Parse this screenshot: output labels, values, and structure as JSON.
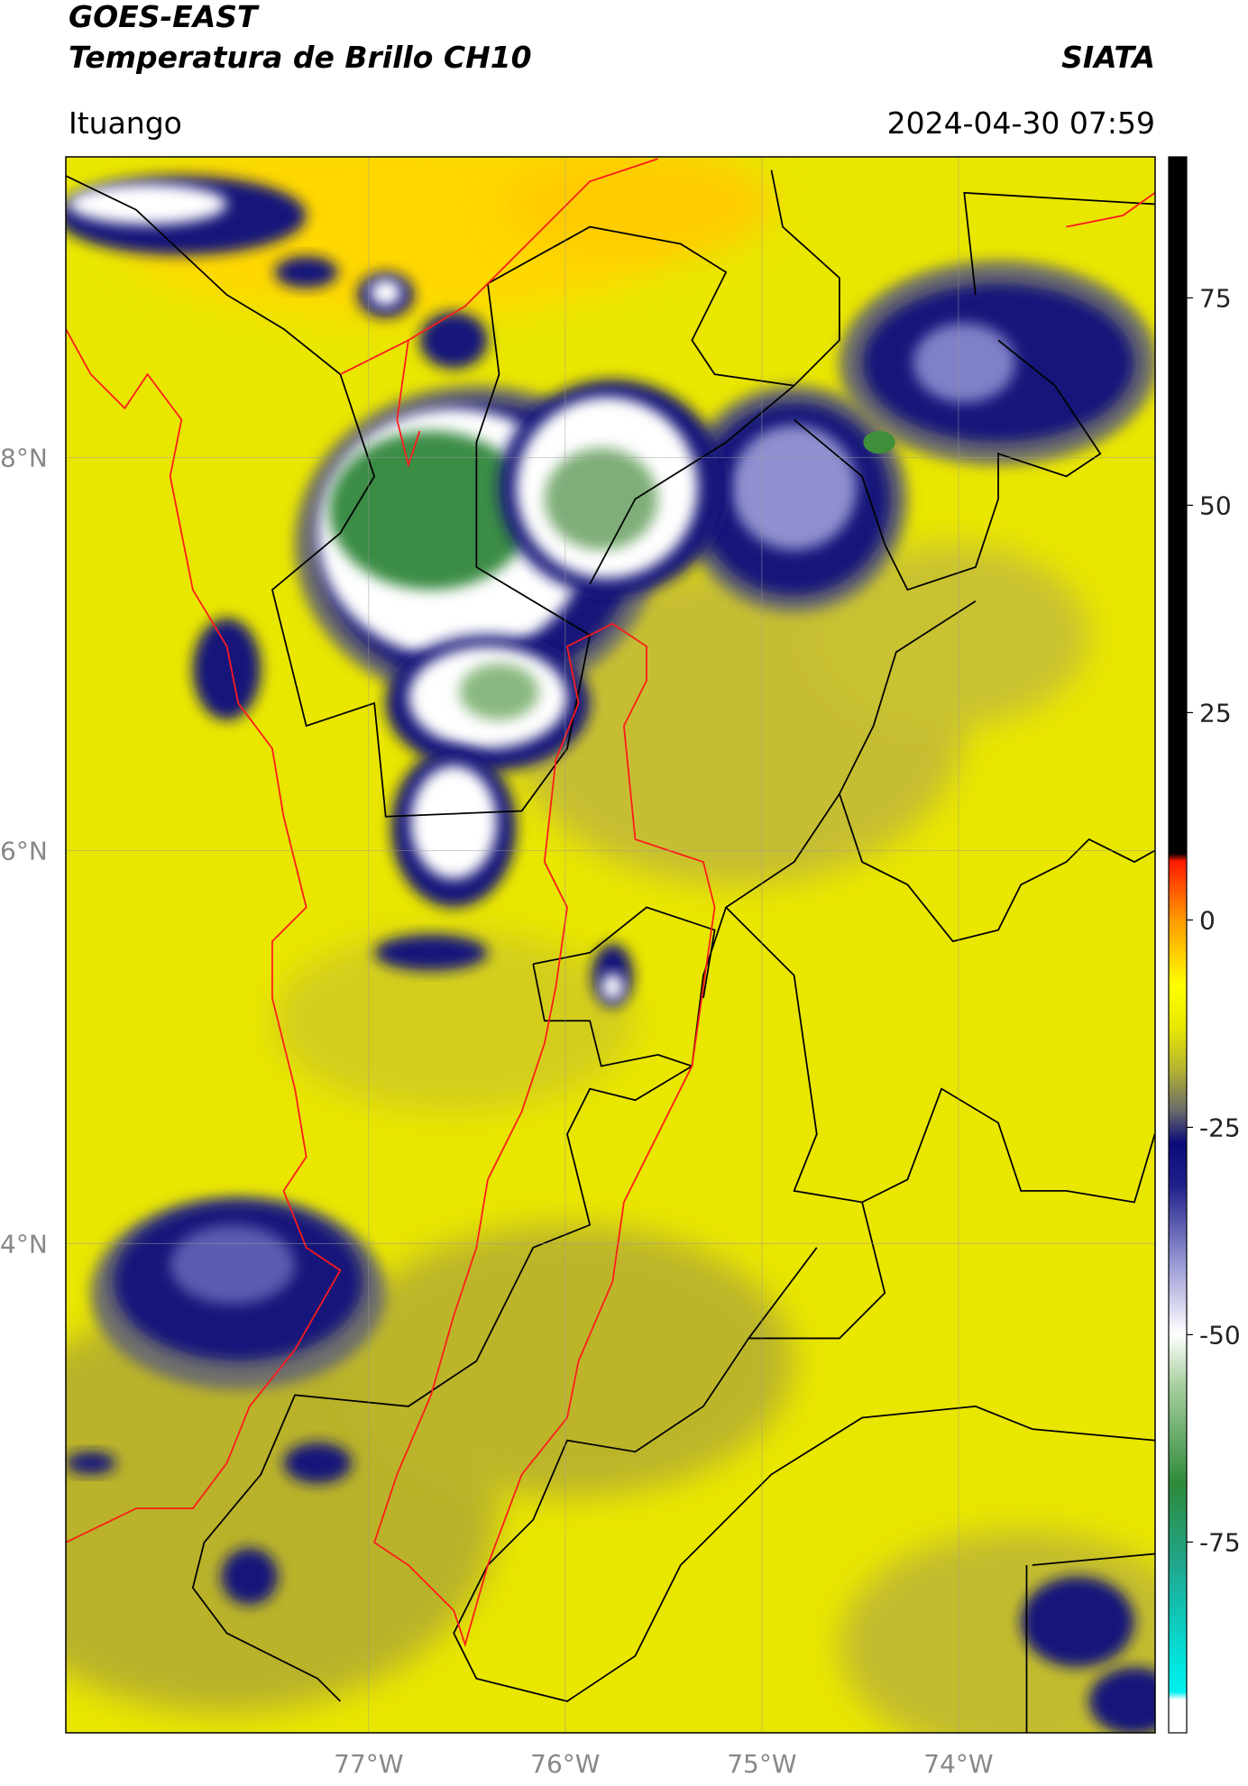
{
  "header": {
    "title": "GOES-EAST",
    "subtitle": "Temperatura de Brillo CH10",
    "brand": "SIATA",
    "location": "Ituango",
    "datetime": "2024-04-30 07:59"
  },
  "map": {
    "xlim": [
      -78.54,
      -73.0
    ],
    "ylim": [
      1.51,
      9.53
    ],
    "xticks": [
      {
        "value": -77,
        "label": "77°W"
      },
      {
        "value": -76,
        "label": "76°W"
      },
      {
        "value": -75,
        "label": "75°W"
      },
      {
        "value": -74,
        "label": "74°W"
      }
    ],
    "yticks": [
      {
        "value": 8,
        "label": "8°N"
      },
      {
        "value": 6,
        "label": "6°N"
      },
      {
        "value": 4,
        "label": "4°N"
      }
    ],
    "grid": true
  },
  "colorbar": {
    "lim": [
      -98,
      92
    ],
    "ticks": [
      75,
      50,
      25,
      0,
      -25,
      -50,
      -75
    ]
  }
}
